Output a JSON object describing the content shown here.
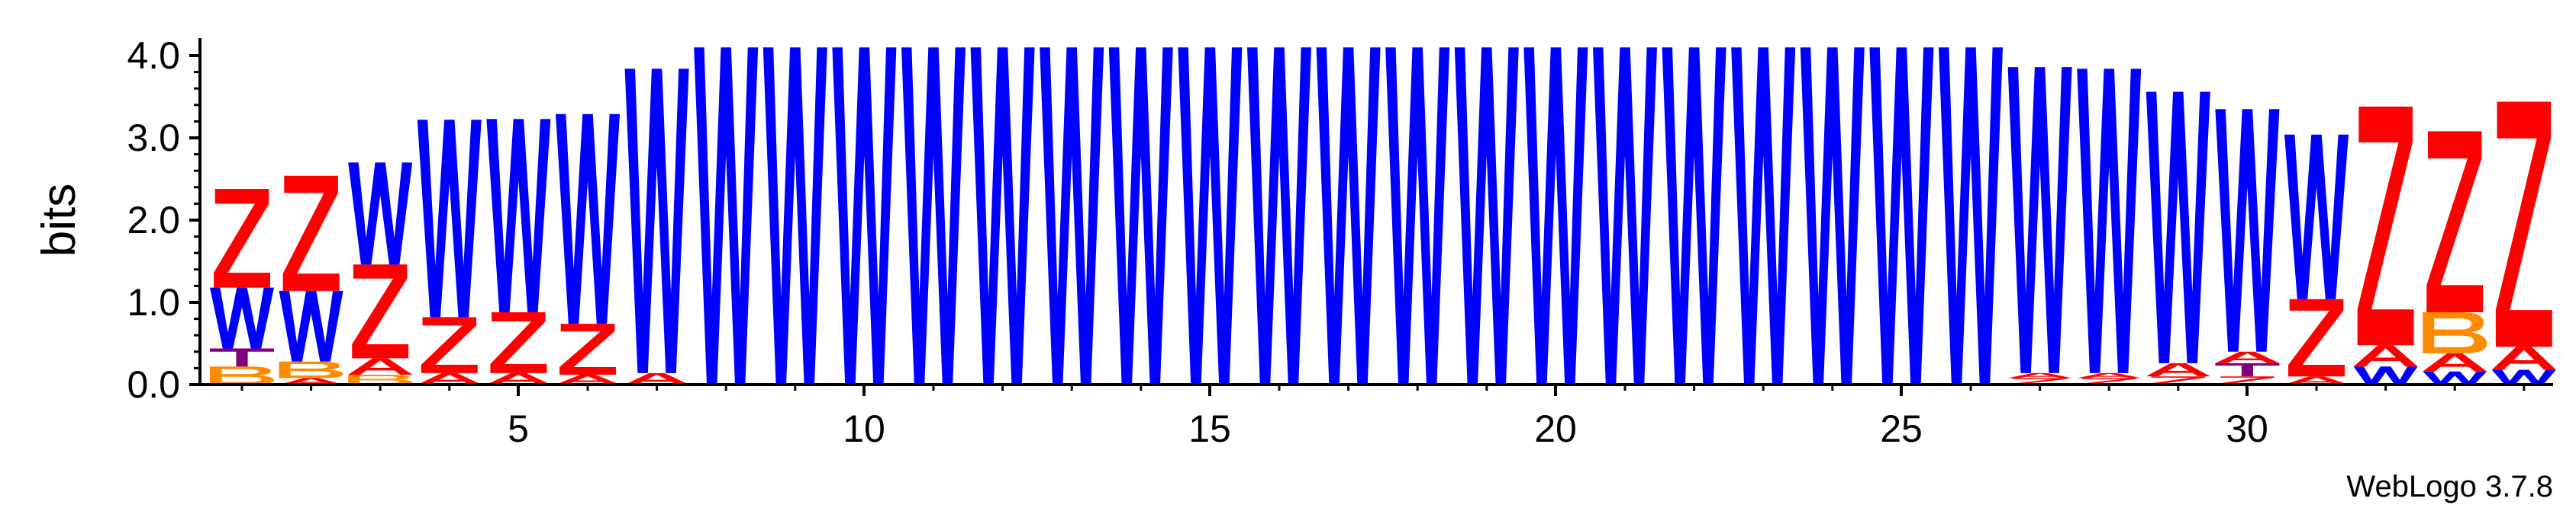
{
  "chart_data": {
    "type": "sequence-logo",
    "ylabel": "bits",
    "ylim": [
      0,
      4.0
    ],
    "y_ticks": [
      "0.0",
      "1.0",
      "2.0",
      "3.0",
      "4.0"
    ],
    "x_ticks": [
      "5",
      "10",
      "15",
      "20",
      "25",
      "30"
    ],
    "position_range": [
      1,
      34
    ],
    "colors": {
      "Z": "#ff0000",
      "W": "#0000ff",
      "B": "#ff8c00",
      "T": "#800080",
      "A": "#ff0000"
    },
    "positions": [
      {
        "pos": 1,
        "letters": [
          [
            "B",
            0.22
          ],
          [
            "T",
            0.22
          ],
          [
            "W",
            0.74
          ],
          [
            "Z",
            1.2
          ]
        ]
      },
      {
        "pos": 2,
        "letters": [
          [
            "A",
            0.08
          ],
          [
            "B",
            0.2
          ],
          [
            "W",
            0.86
          ],
          [
            "Z",
            1.4
          ]
        ]
      },
      {
        "pos": 3,
        "letters": [
          [
            "B",
            0.12
          ],
          [
            "A",
            0.2
          ],
          [
            "Z",
            1.14
          ],
          [
            "W",
            1.24
          ]
        ]
      },
      {
        "pos": 4,
        "letters": [
          [
            "A",
            0.14
          ],
          [
            "Z",
            0.68
          ],
          [
            "W",
            2.4
          ]
        ]
      },
      {
        "pos": 5,
        "letters": [
          [
            "A",
            0.14
          ],
          [
            "Z",
            0.74
          ],
          [
            "W",
            2.35
          ]
        ]
      },
      {
        "pos": 6,
        "letters": [
          [
            "A",
            0.12
          ],
          [
            "Z",
            0.62
          ],
          [
            "W",
            2.55
          ]
        ]
      },
      {
        "pos": 7,
        "letters": [
          [
            "A",
            0.14
          ],
          [
            "W",
            3.7
          ]
        ]
      },
      {
        "pos": 8,
        "letters": [
          [
            "W",
            4.1
          ]
        ]
      },
      {
        "pos": 9,
        "letters": [
          [
            "W",
            4.1
          ]
        ]
      },
      {
        "pos": 10,
        "letters": [
          [
            "W",
            4.1
          ]
        ]
      },
      {
        "pos": 11,
        "letters": [
          [
            "W",
            4.1
          ]
        ]
      },
      {
        "pos": 12,
        "letters": [
          [
            "W",
            4.1
          ]
        ]
      },
      {
        "pos": 13,
        "letters": [
          [
            "W",
            4.1
          ]
        ]
      },
      {
        "pos": 14,
        "letters": [
          [
            "W",
            4.1
          ]
        ]
      },
      {
        "pos": 15,
        "letters": [
          [
            "W",
            4.1
          ]
        ]
      },
      {
        "pos": 16,
        "letters": [
          [
            "W",
            4.1
          ]
        ]
      },
      {
        "pos": 17,
        "letters": [
          [
            "W",
            4.1
          ]
        ]
      },
      {
        "pos": 18,
        "letters": [
          [
            "W",
            4.1
          ]
        ]
      },
      {
        "pos": 19,
        "letters": [
          [
            "W",
            4.1
          ]
        ]
      },
      {
        "pos": 20,
        "letters": [
          [
            "W",
            4.1
          ]
        ]
      },
      {
        "pos": 21,
        "letters": [
          [
            "W",
            4.1
          ]
        ]
      },
      {
        "pos": 22,
        "letters": [
          [
            "W",
            4.1
          ]
        ]
      },
      {
        "pos": 23,
        "letters": [
          [
            "W",
            4.1
          ]
        ]
      },
      {
        "pos": 24,
        "letters": [
          [
            "W",
            4.1
          ]
        ]
      },
      {
        "pos": 25,
        "letters": [
          [
            "W",
            4.1
          ]
        ]
      },
      {
        "pos": 26,
        "letters": [
          [
            "W",
            4.1
          ]
        ]
      },
      {
        "pos": 27,
        "letters": [
          [
            "Z",
            0.08
          ],
          [
            "A",
            0.06
          ],
          [
            "W",
            3.72
          ]
        ]
      },
      {
        "pos": 28,
        "letters": [
          [
            "Z",
            0.08
          ],
          [
            "A",
            0.06
          ],
          [
            "W",
            3.7
          ]
        ]
      },
      {
        "pos": 29,
        "letters": [
          [
            "Z",
            0.1
          ],
          [
            "A",
            0.16
          ],
          [
            "W",
            3.3
          ]
        ]
      },
      {
        "pos": 30,
        "letters": [
          [
            "Z",
            0.1
          ],
          [
            "T",
            0.16
          ],
          [
            "A",
            0.14
          ],
          [
            "W",
            2.95
          ]
        ]
      },
      {
        "pos": 31,
        "letters": [
          [
            "A",
            0.1
          ],
          [
            "Z",
            0.94
          ],
          [
            "W",
            2.0
          ]
        ]
      },
      {
        "pos": 32,
        "letters": [
          [
            "W",
            0.22
          ],
          [
            "A",
            0.26
          ],
          [
            "Z",
            2.9
          ]
        ]
      },
      {
        "pos": 33,
        "letters": [
          [
            "W",
            0.16
          ],
          [
            "A",
            0.22
          ],
          [
            "B",
            0.5
          ],
          [
            "Z",
            2.2
          ]
        ]
      },
      {
        "pos": 34,
        "letters": [
          [
            "W",
            0.18
          ],
          [
            "A",
            0.28
          ],
          [
            "Z",
            2.98
          ]
        ]
      }
    ]
  },
  "footer": {
    "label": "WebLogo 3.7.8"
  }
}
